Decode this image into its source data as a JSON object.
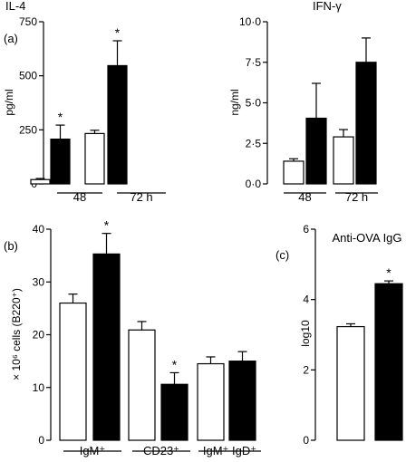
{
  "chart_data": [
    {
      "id": "il4",
      "type": "bar",
      "panel_label": "(a)",
      "title": "IL-4",
      "ylabel": "pg/ml",
      "ylim": [
        0,
        750
      ],
      "yticks": [
        "0",
        "250",
        "500",
        "750"
      ],
      "groups": [
        {
          "label": "48",
          "bars": [
            {
              "value": 20,
              "err": 5,
              "fill": "white"
            },
            {
              "value": 207,
              "err": 65,
              "fill": "black",
              "star": "*"
            }
          ]
        },
        {
          "label": "72 h",
          "bars": [
            {
              "value": 233,
              "err": 15,
              "fill": "white"
            },
            {
              "value": 547,
              "err": 115,
              "fill": "black",
              "star": "*"
            }
          ]
        }
      ]
    },
    {
      "id": "ifng",
      "type": "bar",
      "title": "IFN-γ",
      "ylabel": "ng/ml",
      "ylim": [
        0,
        10
      ],
      "yticks": [
        "0·0",
        "2·5",
        "5·0",
        "7·5",
        "10·0"
      ],
      "groups": [
        {
          "label": "48",
          "bars": [
            {
              "value": 1.4,
              "err": 0.15,
              "fill": "white"
            },
            {
              "value": 4.05,
              "err": 2.15,
              "fill": "black"
            }
          ]
        },
        {
          "label": "72 h",
          "bars": [
            {
              "value": 2.9,
              "err": 0.45,
              "fill": "white"
            },
            {
              "value": 7.5,
              "err": 1.5,
              "fill": "black"
            }
          ]
        }
      ]
    },
    {
      "id": "cells",
      "type": "bar",
      "panel_label": "(b)",
      "ylabel": "× 10⁶ cells (B220⁺)",
      "ylim": [
        0,
        40
      ],
      "yticks": [
        "0",
        "10",
        "20",
        "30",
        "40"
      ],
      "groups": [
        {
          "label": "IgM⁺",
          "bars": [
            {
              "value": 26,
              "err": 1.7,
              "fill": "white"
            },
            {
              "value": 35.3,
              "err": 3.9,
              "fill": "black",
              "star": "*"
            }
          ]
        },
        {
          "label": "CD23⁺",
          "bars": [
            {
              "value": 20.9,
              "err": 1.6,
              "fill": "white"
            },
            {
              "value": 10.6,
              "err": 2.2,
              "fill": "black",
              "star": "*"
            }
          ]
        },
        {
          "label": "IgM⁺ IgD⁺",
          "bars": [
            {
              "value": 14.5,
              "err": 1.3,
              "fill": "white"
            },
            {
              "value": 15,
              "err": 1.8,
              "fill": "black"
            }
          ]
        }
      ]
    },
    {
      "id": "ova",
      "type": "bar",
      "panel_label": "(c)",
      "title": "Anti-OVA IgG",
      "ylabel": "log10",
      "ylim": [
        0,
        6
      ],
      "yticks": [
        "0",
        "2",
        "4",
        "6"
      ],
      "groups": [
        {
          "label": "",
          "bars": [
            {
              "value": 3.23,
              "err": 0.08,
              "fill": "white"
            },
            {
              "value": 4.45,
              "err": 0.08,
              "fill": "black",
              "star": "*"
            }
          ]
        }
      ]
    }
  ]
}
